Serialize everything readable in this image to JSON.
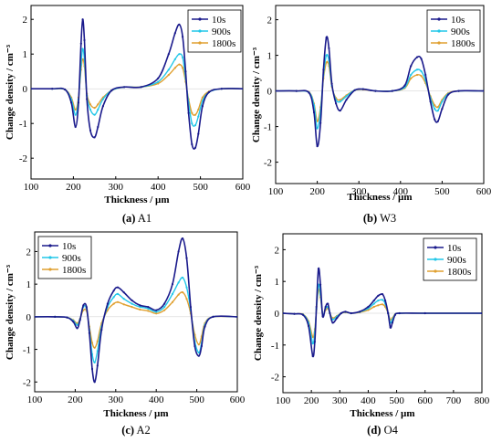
{
  "panels": [
    {
      "caption_letter": "(a)",
      "caption_name": "A1",
      "chart_data": {
        "type": "line",
        "xlabel": "Thickness / µm",
        "ylabel": "Change density / cm⁻³",
        "xlim": [
          100,
          600
        ],
        "ylim": [
          -2.6,
          2.4
        ],
        "xticks": [
          "100",
          "200",
          "300",
          "400",
          "500",
          "600"
        ],
        "yticks": [
          "-2",
          "-1",
          "0",
          "1",
          "2"
        ],
        "legend": "top-right",
        "series": [
          {
            "name": "10s",
            "color": "#1a1a8c",
            "x": [
              100,
              150,
              180,
              195,
              205,
              212,
              218,
              222,
              226,
              232,
              240,
              250,
              258,
              270,
              290,
              320,
              360,
              400,
              425,
              440,
              450,
              458,
              465,
              472,
              480,
              488,
              495,
              505,
              520,
              550,
              600
            ],
            "y": [
              0,
              0,
              -0.02,
              -0.4,
              -1.1,
              -0.4,
              1.3,
              2.0,
              1.4,
              -0.3,
              -1.2,
              -1.4,
              -1.1,
              -0.5,
              -0.05,
              0.05,
              0.05,
              0.3,
              1.0,
              1.6,
              1.85,
              1.5,
              0.5,
              -0.7,
              -1.6,
              -1.7,
              -1.3,
              -0.5,
              -0.1,
              0,
              0
            ]
          },
          {
            "name": "900s",
            "color": "#22c7e8",
            "x": [
              100,
              150,
              180,
              195,
              205,
              212,
              218,
              222,
              226,
              232,
              240,
              250,
              258,
              270,
              290,
              320,
              360,
              400,
              425,
              440,
              450,
              458,
              465,
              472,
              480,
              488,
              495,
              505,
              520,
              550,
              600
            ],
            "y": [
              0,
              0,
              -0.02,
              -0.3,
              -0.75,
              -0.3,
              0.7,
              1.15,
              0.85,
              -0.2,
              -0.6,
              -0.75,
              -0.6,
              -0.3,
              -0.05,
              0.05,
              0.05,
              0.2,
              0.55,
              0.85,
              1.0,
              0.9,
              0.3,
              -0.4,
              -1.0,
              -1.05,
              -0.8,
              -0.35,
              -0.1,
              0,
              0
            ]
          },
          {
            "name": "1800s",
            "color": "#e0a030",
            "x": [
              100,
              150,
              180,
              195,
              205,
              212,
              218,
              222,
              226,
              232,
              240,
              250,
              258,
              270,
              290,
              320,
              360,
              400,
              425,
              440,
              450,
              458,
              465,
              472,
              480,
              488,
              495,
              505,
              520,
              550,
              600
            ],
            "y": [
              0,
              0,
              -0.02,
              -0.25,
              -0.6,
              -0.25,
              0.55,
              0.85,
              0.65,
              -0.15,
              -0.45,
              -0.55,
              -0.45,
              -0.25,
              -0.05,
              0.05,
              0.05,
              0.15,
              0.4,
              0.6,
              0.7,
              0.6,
              0.2,
              -0.3,
              -0.7,
              -0.75,
              -0.6,
              -0.25,
              -0.08,
              0,
              0
            ]
          }
        ]
      }
    },
    {
      "caption_letter": "(b)",
      "caption_name": "W3",
      "chart_data": {
        "type": "line",
        "xlabel": "Thickness / µm",
        "ylabel": "Change density / cm⁻³",
        "xlim": [
          100,
          600
        ],
        "ylim": [
          -2.6,
          2.4
        ],
        "xticks": [
          "100",
          "200",
          "300",
          "400",
          "500",
          "600"
        ],
        "yticks": [
          "-2",
          "-1",
          "0",
          "1",
          "2"
        ],
        "legend": "top-right",
        "series": [
          {
            "name": "10s",
            "color": "#1a1a8c",
            "x": [
              100,
              150,
              180,
              192,
              200,
              208,
              215,
              222,
              228,
              235,
              245,
              255,
              270,
              290,
              310,
              340,
              380,
              410,
              425,
              440,
              450,
              460,
              472,
              482,
              490,
              500,
              515,
              540,
              600
            ],
            "y": [
              0,
              0,
              -0.05,
              -0.6,
              -1.55,
              -0.9,
              0.6,
              1.5,
              1.2,
              0.2,
              -0.35,
              -0.55,
              -0.25,
              0.02,
              0.05,
              0.0,
              0.0,
              0.15,
              0.7,
              0.95,
              0.9,
              0.45,
              -0.3,
              -0.8,
              -0.85,
              -0.5,
              -0.1,
              0,
              0
            ]
          },
          {
            "name": "900s",
            "color": "#22c7e8",
            "x": [
              100,
              150,
              180,
              192,
              200,
              208,
              215,
              222,
              228,
              235,
              245,
              255,
              270,
              290,
              310,
              340,
              380,
              410,
              425,
              440,
              450,
              460,
              472,
              482,
              490,
              500,
              515,
              540,
              600
            ],
            "y": [
              0,
              0,
              -0.04,
              -0.4,
              -1.05,
              -0.55,
              0.45,
              1.0,
              0.85,
              0.15,
              -0.25,
              -0.3,
              -0.15,
              0.02,
              0.05,
              0.0,
              0.0,
              0.1,
              0.45,
              0.6,
              0.55,
              0.3,
              -0.2,
              -0.5,
              -0.55,
              -0.3,
              -0.08,
              0,
              0
            ]
          },
          {
            "name": "1800s",
            "color": "#e0a030",
            "x": [
              100,
              150,
              180,
              192,
              200,
              208,
              215,
              222,
              228,
              235,
              245,
              255,
              270,
              290,
              310,
              340,
              380,
              410,
              425,
              440,
              450,
              460,
              472,
              482,
              490,
              500,
              515,
              540,
              600
            ],
            "y": [
              0,
              0,
              -0.03,
              -0.35,
              -0.85,
              -0.45,
              0.35,
              0.8,
              0.7,
              0.12,
              -0.2,
              -0.25,
              -0.12,
              0.02,
              0.04,
              0.0,
              0.0,
              0.08,
              0.35,
              0.45,
              0.42,
              0.22,
              -0.15,
              -0.4,
              -0.45,
              -0.25,
              -0.06,
              0,
              0
            ]
          }
        ]
      }
    },
    {
      "caption_letter": "(c)",
      "caption_name": "A2",
      "chart_data": {
        "type": "line",
        "xlabel": "Thickness / µm",
        "ylabel": "Change density / cm⁻³",
        "xlim": [
          100,
          600
        ],
        "ylim": [
          -2.3,
          2.6
        ],
        "xticks": [
          "100",
          "200",
          "300",
          "400",
          "500",
          "600"
        ],
        "yticks": [
          "-2",
          "-1",
          "0",
          "1",
          "2"
        ],
        "legend": "top-left",
        "series": [
          {
            "name": "10s",
            "color": "#1a1a8c",
            "x": [
              100,
              150,
              180,
              195,
              205,
              212,
              220,
              228,
              235,
              242,
              248,
              255,
              265,
              280,
              295,
              305,
              320,
              340,
              360,
              380,
              400,
              420,
              440,
              455,
              465,
              475,
              485,
              495,
              505,
              512,
              520,
              540,
              600
            ],
            "y": [
              0,
              0,
              -0.02,
              -0.15,
              -0.35,
              -0.1,
              0.35,
              0.3,
              -0.5,
              -1.6,
              -2.0,
              -1.5,
              -0.4,
              0.4,
              0.8,
              0.9,
              0.75,
              0.5,
              0.35,
              0.3,
              0.2,
              0.4,
              1.0,
              2.0,
              2.4,
              1.8,
              0.3,
              -0.9,
              -1.2,
              -0.9,
              -0.3,
              0,
              0
            ]
          },
          {
            "name": "900s",
            "color": "#22c7e8",
            "x": [
              100,
              150,
              180,
              195,
              205,
              212,
              220,
              228,
              235,
              242,
              248,
              255,
              265,
              280,
              295,
              305,
              320,
              340,
              360,
              380,
              400,
              420,
              440,
              455,
              465,
              475,
              485,
              495,
              505,
              512,
              520,
              540,
              600
            ],
            "y": [
              0,
              0,
              -0.02,
              -0.12,
              -0.25,
              -0.08,
              0.3,
              0.25,
              -0.4,
              -1.15,
              -1.4,
              -1.05,
              -0.3,
              0.3,
              0.6,
              0.7,
              0.55,
              0.4,
              0.3,
              0.25,
              0.15,
              0.3,
              0.7,
              1.05,
              1.2,
              0.9,
              0.2,
              -0.75,
              -1.1,
              -0.8,
              -0.25,
              0,
              0
            ]
          },
          {
            "name": "1800s",
            "color": "#e0a030",
            "x": [
              100,
              150,
              180,
              195,
              205,
              212,
              220,
              228,
              235,
              242,
              248,
              255,
              265,
              280,
              295,
              305,
              320,
              340,
              360,
              380,
              400,
              420,
              440,
              455,
              465,
              475,
              485,
              495,
              505,
              512,
              520,
              540,
              600
            ],
            "y": [
              0,
              0,
              -0.02,
              -0.1,
              -0.2,
              -0.06,
              0.2,
              0.18,
              -0.3,
              -0.8,
              -0.95,
              -0.75,
              -0.2,
              0.2,
              0.4,
              0.45,
              0.38,
              0.3,
              0.22,
              0.18,
              0.1,
              0.2,
              0.45,
              0.68,
              0.75,
              0.55,
              0.1,
              -0.55,
              -0.85,
              -0.6,
              -0.2,
              0,
              0
            ]
          }
        ]
      }
    },
    {
      "caption_letter": "(d)",
      "caption_name": "O4",
      "chart_data": {
        "type": "line",
        "xlabel": "Thickness / µm",
        "ylabel": "Change density / cm⁻³",
        "xlim": [
          100,
          800
        ],
        "ylim": [
          -2.5,
          2.5
        ],
        "xticks": [
          "100",
          "200",
          "300",
          "400",
          "500",
          "600",
          "700",
          "800"
        ],
        "yticks": [
          "-2",
          "-1",
          "0",
          "1",
          "2"
        ],
        "legend": "top-left",
        "series": [
          {
            "name": "10s",
            "color": "#1a1a8c",
            "x": [
              100,
              140,
              170,
              190,
              205,
              212,
              218,
              225,
              232,
              240,
              250,
              258,
              265,
              275,
              290,
              305,
              320,
              340,
              370,
              400,
              420,
              435,
              450,
              460,
              470,
              478,
              485,
              495,
              510,
              600,
              800
            ],
            "y": [
              0,
              -0.02,
              -0.05,
              -0.4,
              -1.35,
              -0.9,
              0.2,
              1.4,
              0.9,
              -0.1,
              0.2,
              0.3,
              0.0,
              -0.3,
              -0.15,
              0.0,
              0.05,
              0.0,
              0.05,
              0.2,
              0.4,
              0.55,
              0.6,
              0.4,
              0.0,
              -0.45,
              -0.3,
              -0.05,
              0,
              0,
              0
            ]
          },
          {
            "name": "900s",
            "color": "#22c7e8",
            "x": [
              100,
              140,
              170,
              190,
              205,
              212,
              218,
              225,
              232,
              240,
              250,
              258,
              265,
              275,
              290,
              305,
              320,
              340,
              370,
              400,
              420,
              435,
              450,
              460,
              470,
              478,
              485,
              495,
              510,
              600,
              800
            ],
            "y": [
              0,
              -0.02,
              -0.04,
              -0.3,
              -0.95,
              -0.6,
              0.15,
              0.9,
              0.6,
              -0.05,
              0.15,
              0.2,
              0.0,
              -0.2,
              -0.1,
              0.0,
              0.04,
              0.0,
              0.04,
              0.15,
              0.3,
              0.4,
              0.42,
              0.3,
              0.0,
              -0.3,
              -0.2,
              -0.04,
              0,
              0,
              0
            ]
          },
          {
            "name": "1800s",
            "color": "#e0a030",
            "x": [
              100,
              140,
              170,
              190,
              205,
              212,
              218,
              225,
              232,
              240,
              250,
              258,
              265,
              275,
              290,
              305,
              320,
              340,
              370,
              400,
              420,
              435,
              450,
              460,
              470,
              478,
              485,
              495,
              510,
              600,
              800
            ],
            "y": [
              0,
              -0.02,
              -0.03,
              -0.25,
              -0.75,
              -0.5,
              0.12,
              0.75,
              0.5,
              -0.04,
              0.1,
              0.15,
              0.0,
              -0.15,
              -0.08,
              0.0,
              0.03,
              0.0,
              0.03,
              0.1,
              0.2,
              0.25,
              0.28,
              0.2,
              0.0,
              -0.2,
              -0.15,
              -0.03,
              0,
              0,
              0
            ]
          }
        ]
      }
    }
  ]
}
